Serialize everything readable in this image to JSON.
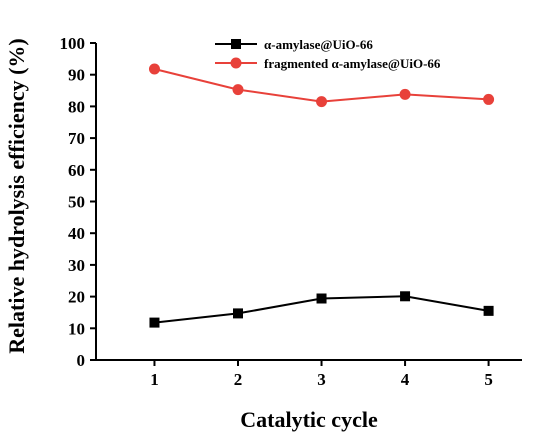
{
  "chart_data": {
    "type": "line",
    "xlabel": "Catalytic cycle",
    "ylabel": "Relative hydrolysis efficiency (%)",
    "x": [
      1,
      2,
      3,
      4,
      5
    ],
    "xticks": [
      "1",
      "2",
      "3",
      "4",
      "5"
    ],
    "xlim": [
      0.3,
      5.4
    ],
    "ylim": [
      0,
      100
    ],
    "yticks": [
      "0",
      "10",
      "20",
      "30",
      "40",
      "50",
      "60",
      "70",
      "80",
      "90",
      "100"
    ],
    "grid": false,
    "legend_position": "top-right",
    "series": [
      {
        "name": "α-amylase@UiO-66",
        "values": [
          11.8,
          14.7,
          19.4,
          20.1,
          15.5
        ],
        "color": "#000000",
        "marker": "square"
      },
      {
        "name": "fragmented  α-amylase@UiO-66",
        "values": [
          91.8,
          85.3,
          81.5,
          83.8,
          82.2
        ],
        "color": "#e8413a",
        "marker": "circle"
      }
    ]
  }
}
